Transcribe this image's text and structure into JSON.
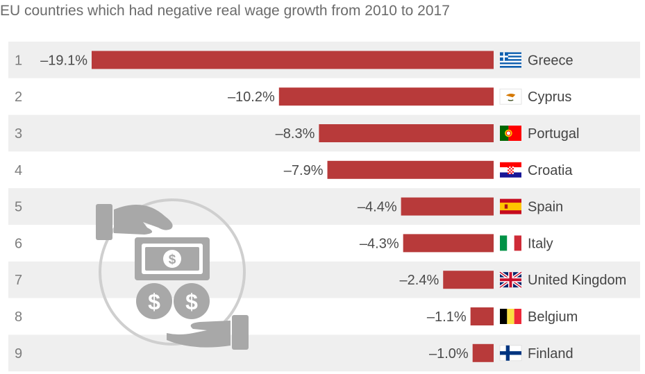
{
  "chart_data": {
    "type": "bar",
    "orientation": "horizontal",
    "title": "",
    "subtitle": "EU countries which had negative real wage growth from 2010 to 2017",
    "xlim": [
      -19.1,
      0
    ],
    "bar_color": "#b83a3a",
    "row_colors": [
      "#efefef",
      "#ffffff"
    ],
    "rows": [
      {
        "rank": "1",
        "value": -19.1,
        "label": "–19.1%",
        "country": "Greece",
        "flag": "greece-flag-icon"
      },
      {
        "rank": "2",
        "value": -10.2,
        "label": "–10.2%",
        "country": "Cyprus",
        "flag": "cyprus-flag-icon"
      },
      {
        "rank": "3",
        "value": -8.3,
        "label": "–8.3%",
        "country": "Portugal",
        "flag": "portugal-flag-icon"
      },
      {
        "rank": "4",
        "value": -7.9,
        "label": "–7.9%",
        "country": "Croatia",
        "flag": "croatia-flag-icon"
      },
      {
        "rank": "5",
        "value": -4.4,
        "label": "–4.4%",
        "country": "Spain",
        "flag": "spain-flag-icon"
      },
      {
        "rank": "6",
        "value": -4.3,
        "label": "–4.3%",
        "country": "Italy",
        "flag": "italy-flag-icon"
      },
      {
        "rank": "7",
        "value": -2.4,
        "label": "–2.4%",
        "country": "United Kingdom",
        "flag": "uk-flag-icon"
      },
      {
        "rank": "8",
        "value": -1.1,
        "label": "–1.1%",
        "country": "Belgium",
        "flag": "belgium-flag-icon"
      },
      {
        "rank": "9",
        "value": -1.0,
        "label": "–1.0%",
        "country": "Finland",
        "flag": "finland-flag-icon"
      }
    ]
  }
}
